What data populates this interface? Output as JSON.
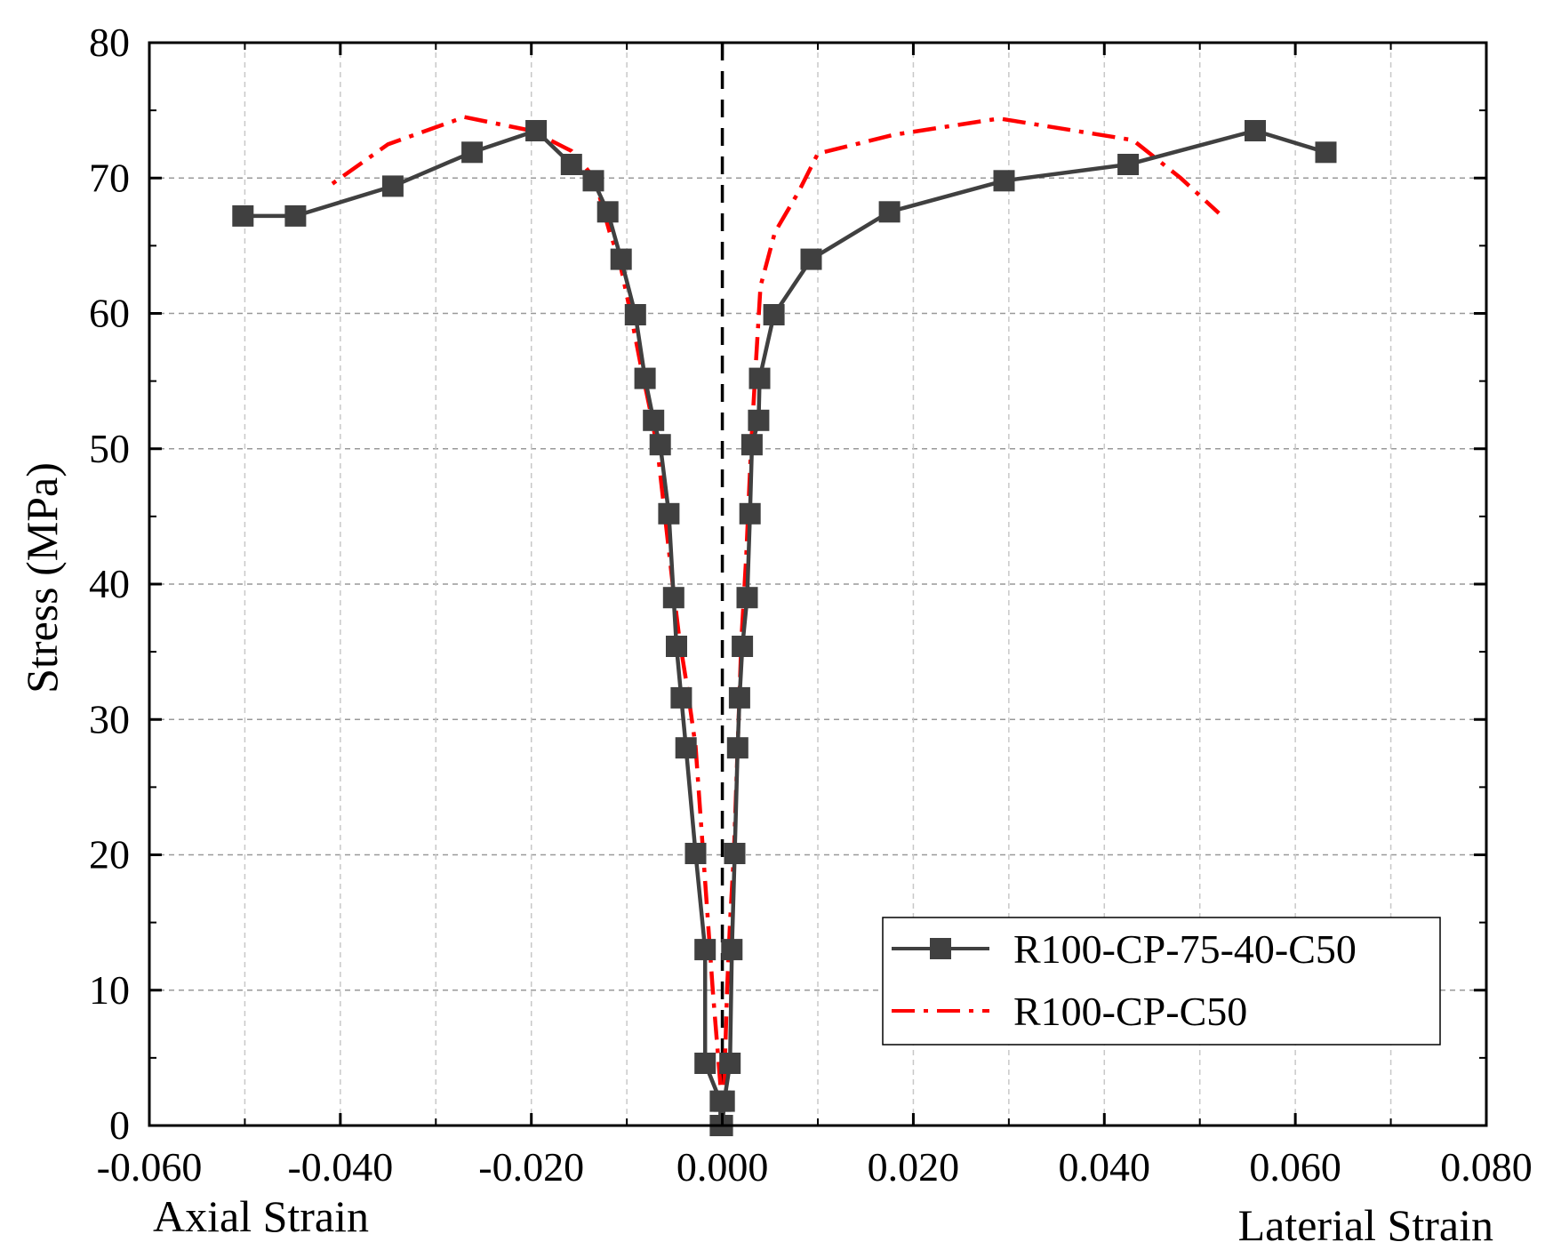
{
  "chart_data": {
    "type": "line",
    "title": "",
    "xlabel_left": "Axial Strain",
    "xlabel_right": "Laterial Strain",
    "ylabel": "Stress (MPa)",
    "xlim": [
      -0.06,
      0.08
    ],
    "ylim": [
      0,
      80
    ],
    "x_ticks": [
      -0.06,
      -0.04,
      -0.02,
      0.0,
      0.02,
      0.04,
      0.06,
      0.08
    ],
    "x_tick_labels": [
      "-0.060",
      "-0.040",
      "-0.020",
      "0.000",
      "0.020",
      "0.040",
      "0.060",
      "0.080"
    ],
    "y_ticks": [
      0,
      10,
      20,
      30,
      40,
      50,
      60,
      70,
      80
    ],
    "y_tick_labels": [
      "0",
      "10",
      "20",
      "30",
      "40",
      "50",
      "60",
      "70",
      "80"
    ],
    "grid": true,
    "zero_line": true,
    "legend_position": "bottom-right",
    "series": [
      {
        "name": "R100-CP-75-40-C50",
        "color": "#404040",
        "style": "solid-square-markers",
        "segments": [
          {
            "x": [
              -0.0002,
              -0.0002,
              -0.0018,
              -0.0018,
              -0.0028,
              -0.0038,
              -0.0043,
              -0.0048,
              -0.0051,
              -0.0056,
              -0.0065,
              -0.0072,
              -0.0081,
              -0.0091,
              -0.0106,
              -0.012,
              -0.0135,
              -0.0158,
              -0.0195,
              -0.0262,
              -0.0345,
              -0.0447,
              -0.0502
            ],
            "y": [
              0,
              1.8,
              4.6,
              13.0,
              20.1,
              27.9,
              31.6,
              35.4,
              39.0,
              45.2,
              50.3,
              52.1,
              55.2,
              59.9,
              64.0,
              67.5,
              69.8,
              71.0,
              73.5,
              71.9,
              69.4,
              67.2,
              67.2
            ]
          },
          {
            "x": [
              0.0,
              0.0002,
              0.0008,
              0.001,
              0.0013,
              0.0016,
              0.0018,
              0.0021,
              0.0026,
              0.0029,
              0.0031,
              0.0038,
              0.0039,
              0.0054,
              0.0093,
              0.0175,
              0.0295,
              0.0425,
              0.0558,
              0.0632
            ],
            "y": [
              0,
              1.8,
              4.6,
              13.0,
              20.1,
              27.9,
              31.6,
              35.4,
              39.0,
              45.2,
              50.3,
              52.1,
              55.2,
              59.9,
              64.0,
              67.5,
              69.8,
              71.0,
              73.5,
              71.9
            ]
          }
        ]
      },
      {
        "name": "R100-CP-C50",
        "color": "#ff0000",
        "style": "dash-dot",
        "segments": [
          {
            "x": [
              -0.0002,
              -0.001,
              -0.0015,
              -0.002,
              -0.0028,
              -0.0036,
              -0.0045,
              -0.0052,
              -0.006,
              -0.0068,
              -0.0076,
              -0.0085,
              -0.0096,
              -0.0108,
              -0.0118,
              -0.013,
              -0.014,
              -0.0158,
              -0.02,
              -0.027,
              -0.035,
              -0.041
            ],
            "y": [
              3.0,
              10.0,
              15.0,
              20.0,
              28.0,
              32.0,
              36.0,
              40.0,
              45.0,
              50.0,
              53.0,
              56.0,
              60.0,
              64.0,
              66.0,
              69.0,
              70.5,
              72.0,
              73.5,
              74.5,
              72.5,
              69.5
            ]
          },
          {
            "x": [
              0.0002,
              0.0005,
              0.0008,
              0.0012,
              0.0016,
              0.002,
              0.0025,
              0.003,
              0.0034,
              0.004,
              0.0055,
              0.008,
              0.01,
              0.018,
              0.029,
              0.043,
              0.048,
              0.052
            ],
            "y": [
              3.0,
              10.0,
              15.0,
              20.0,
              28.0,
              36.0,
              42.0,
              50.0,
              55.0,
              62.0,
              66.0,
              69.0,
              71.8,
              73.2,
              74.4,
              72.8,
              70.0,
              67.4
            ]
          }
        ]
      }
    ]
  }
}
